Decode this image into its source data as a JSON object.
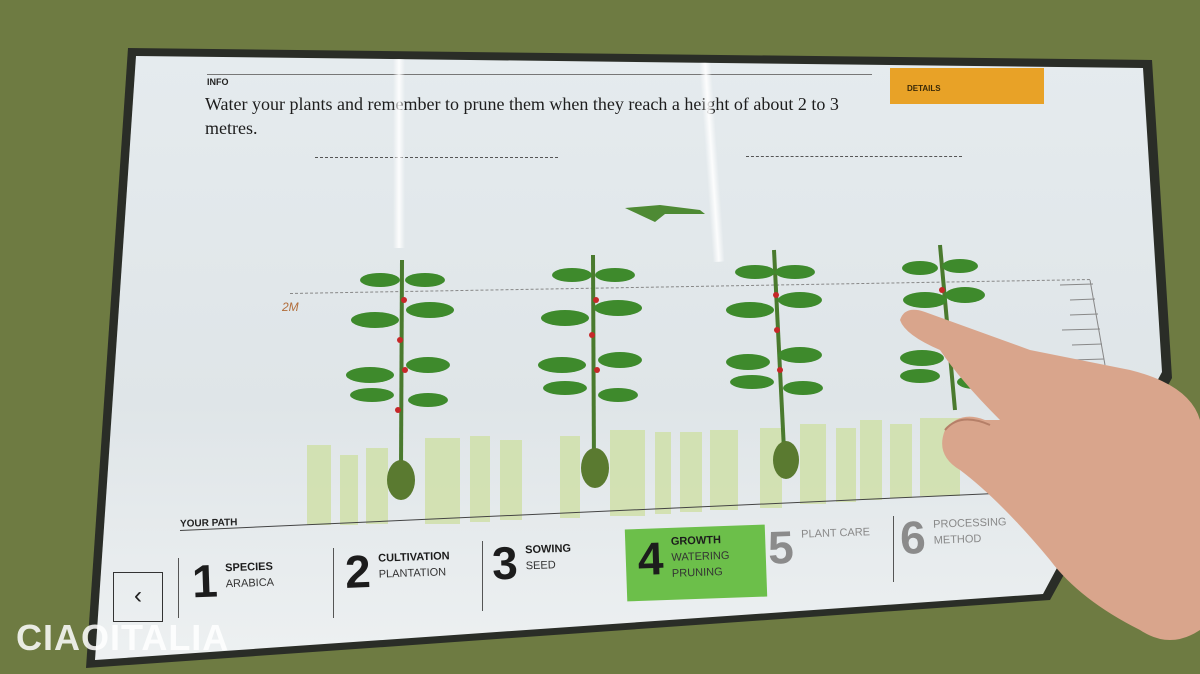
{
  "info": {
    "label": "INFO",
    "text": "Water your plants and remember to prune them when they reach a height of about 2 to 3 metres."
  },
  "details": {
    "label": "DETAILS",
    "color": "#e8a227"
  },
  "height_marker": "2M",
  "path": {
    "label": "YOUR PATH",
    "steps": [
      {
        "number": "1",
        "title": "SPECIES",
        "sub": "ARABICA"
      },
      {
        "number": "2",
        "title": "CULTIVATION",
        "sub": "PLANTATION"
      },
      {
        "number": "3",
        "title": "SOWING",
        "sub": "SEED"
      },
      {
        "number": "4",
        "title": "GROWTH",
        "sub": "WATERING",
        "sub2": "PRUNING",
        "active": true
      },
      {
        "number": "5",
        "title": "PLANT CARE"
      },
      {
        "number": "6",
        "title": "PROCESSING",
        "sub": "METHOD"
      }
    ],
    "active_color": "#6cbf4a"
  },
  "back_icon": "chevron-left-icon",
  "back_glyph": "‹",
  "watermark": "CIAOITALIA"
}
